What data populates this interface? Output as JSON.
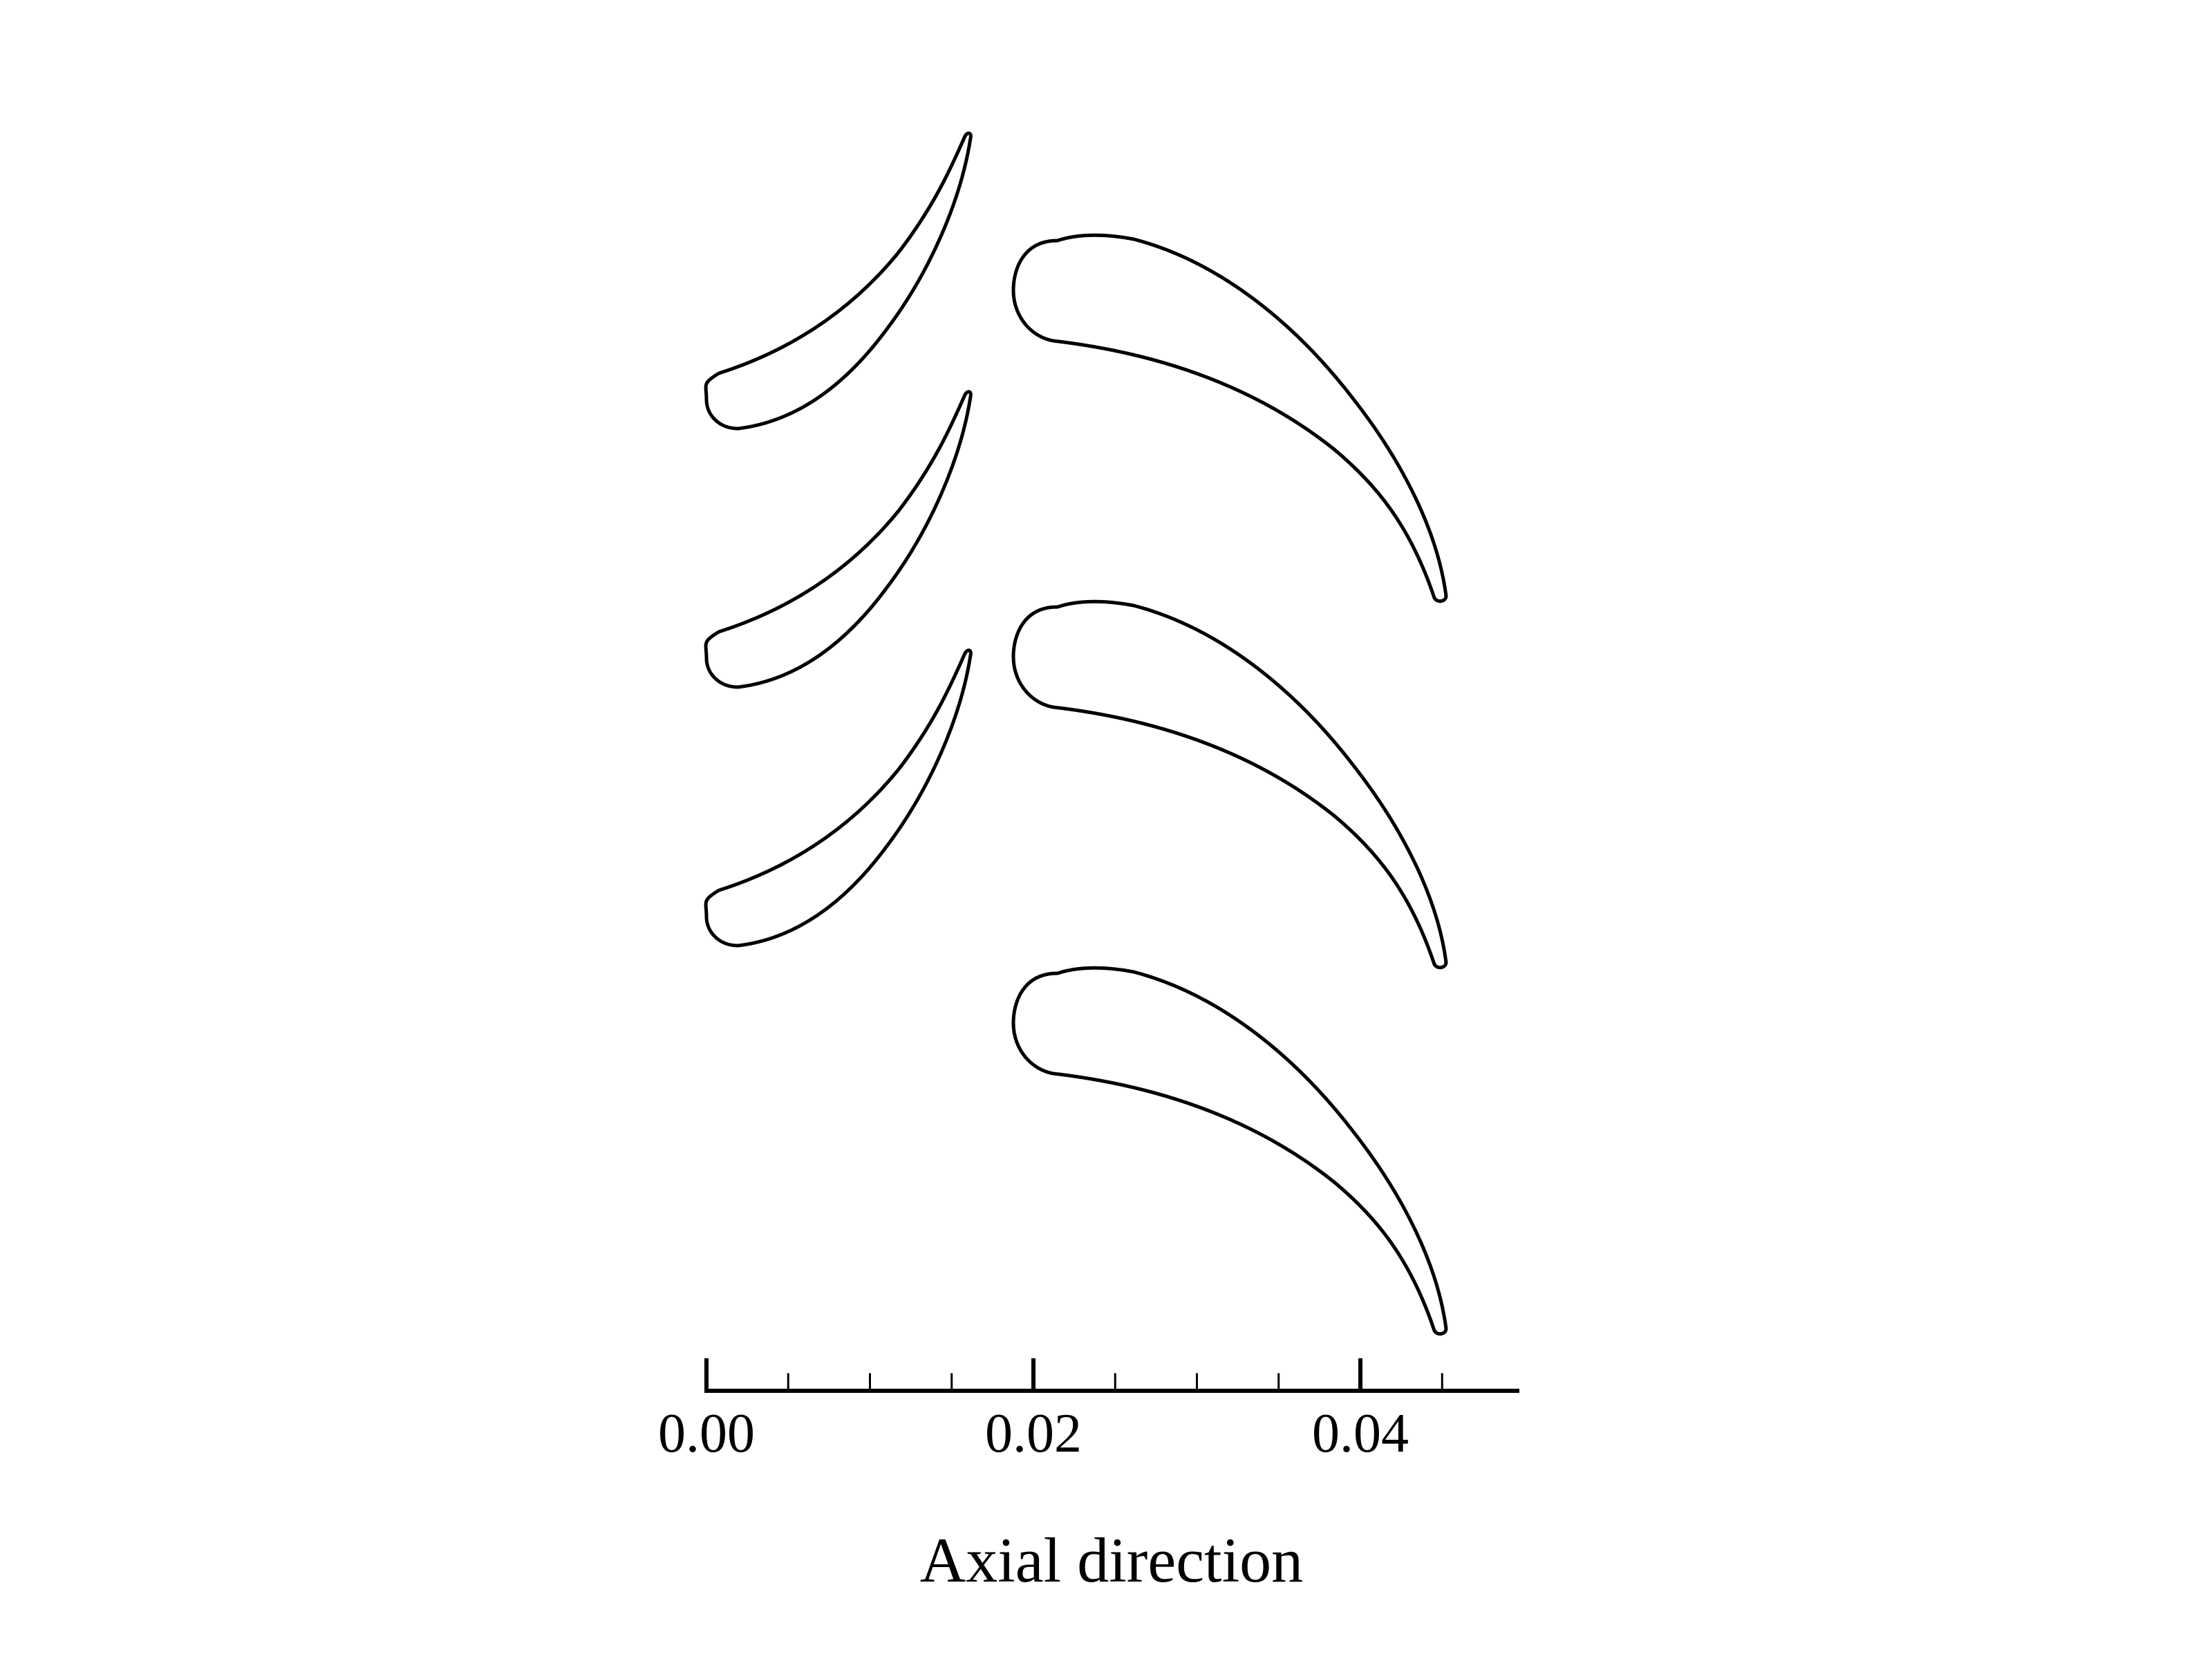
{
  "diagram": {
    "description_type": "turbine blade cascade",
    "x_axis": {
      "title": "Axial direction",
      "range": [
        0.0,
        0.05
      ],
      "major_ticks": [
        0.0,
        0.02,
        0.04
      ],
      "major_tick_labels": [
        "0.00",
        "0.02",
        "0.04"
      ],
      "minor_ticks": [
        0.005,
        0.01,
        0.015,
        0.025,
        0.03,
        0.035,
        0.045
      ]
    },
    "stator_row": {
      "blade_count": 3,
      "axial_extent": [
        0.0,
        0.016
      ]
    },
    "rotor_row": {
      "blade_count": 3,
      "axial_extent": [
        0.0185,
        0.045
      ]
    },
    "colors": {
      "outline": "#000000",
      "background": "#ffffff"
    }
  }
}
